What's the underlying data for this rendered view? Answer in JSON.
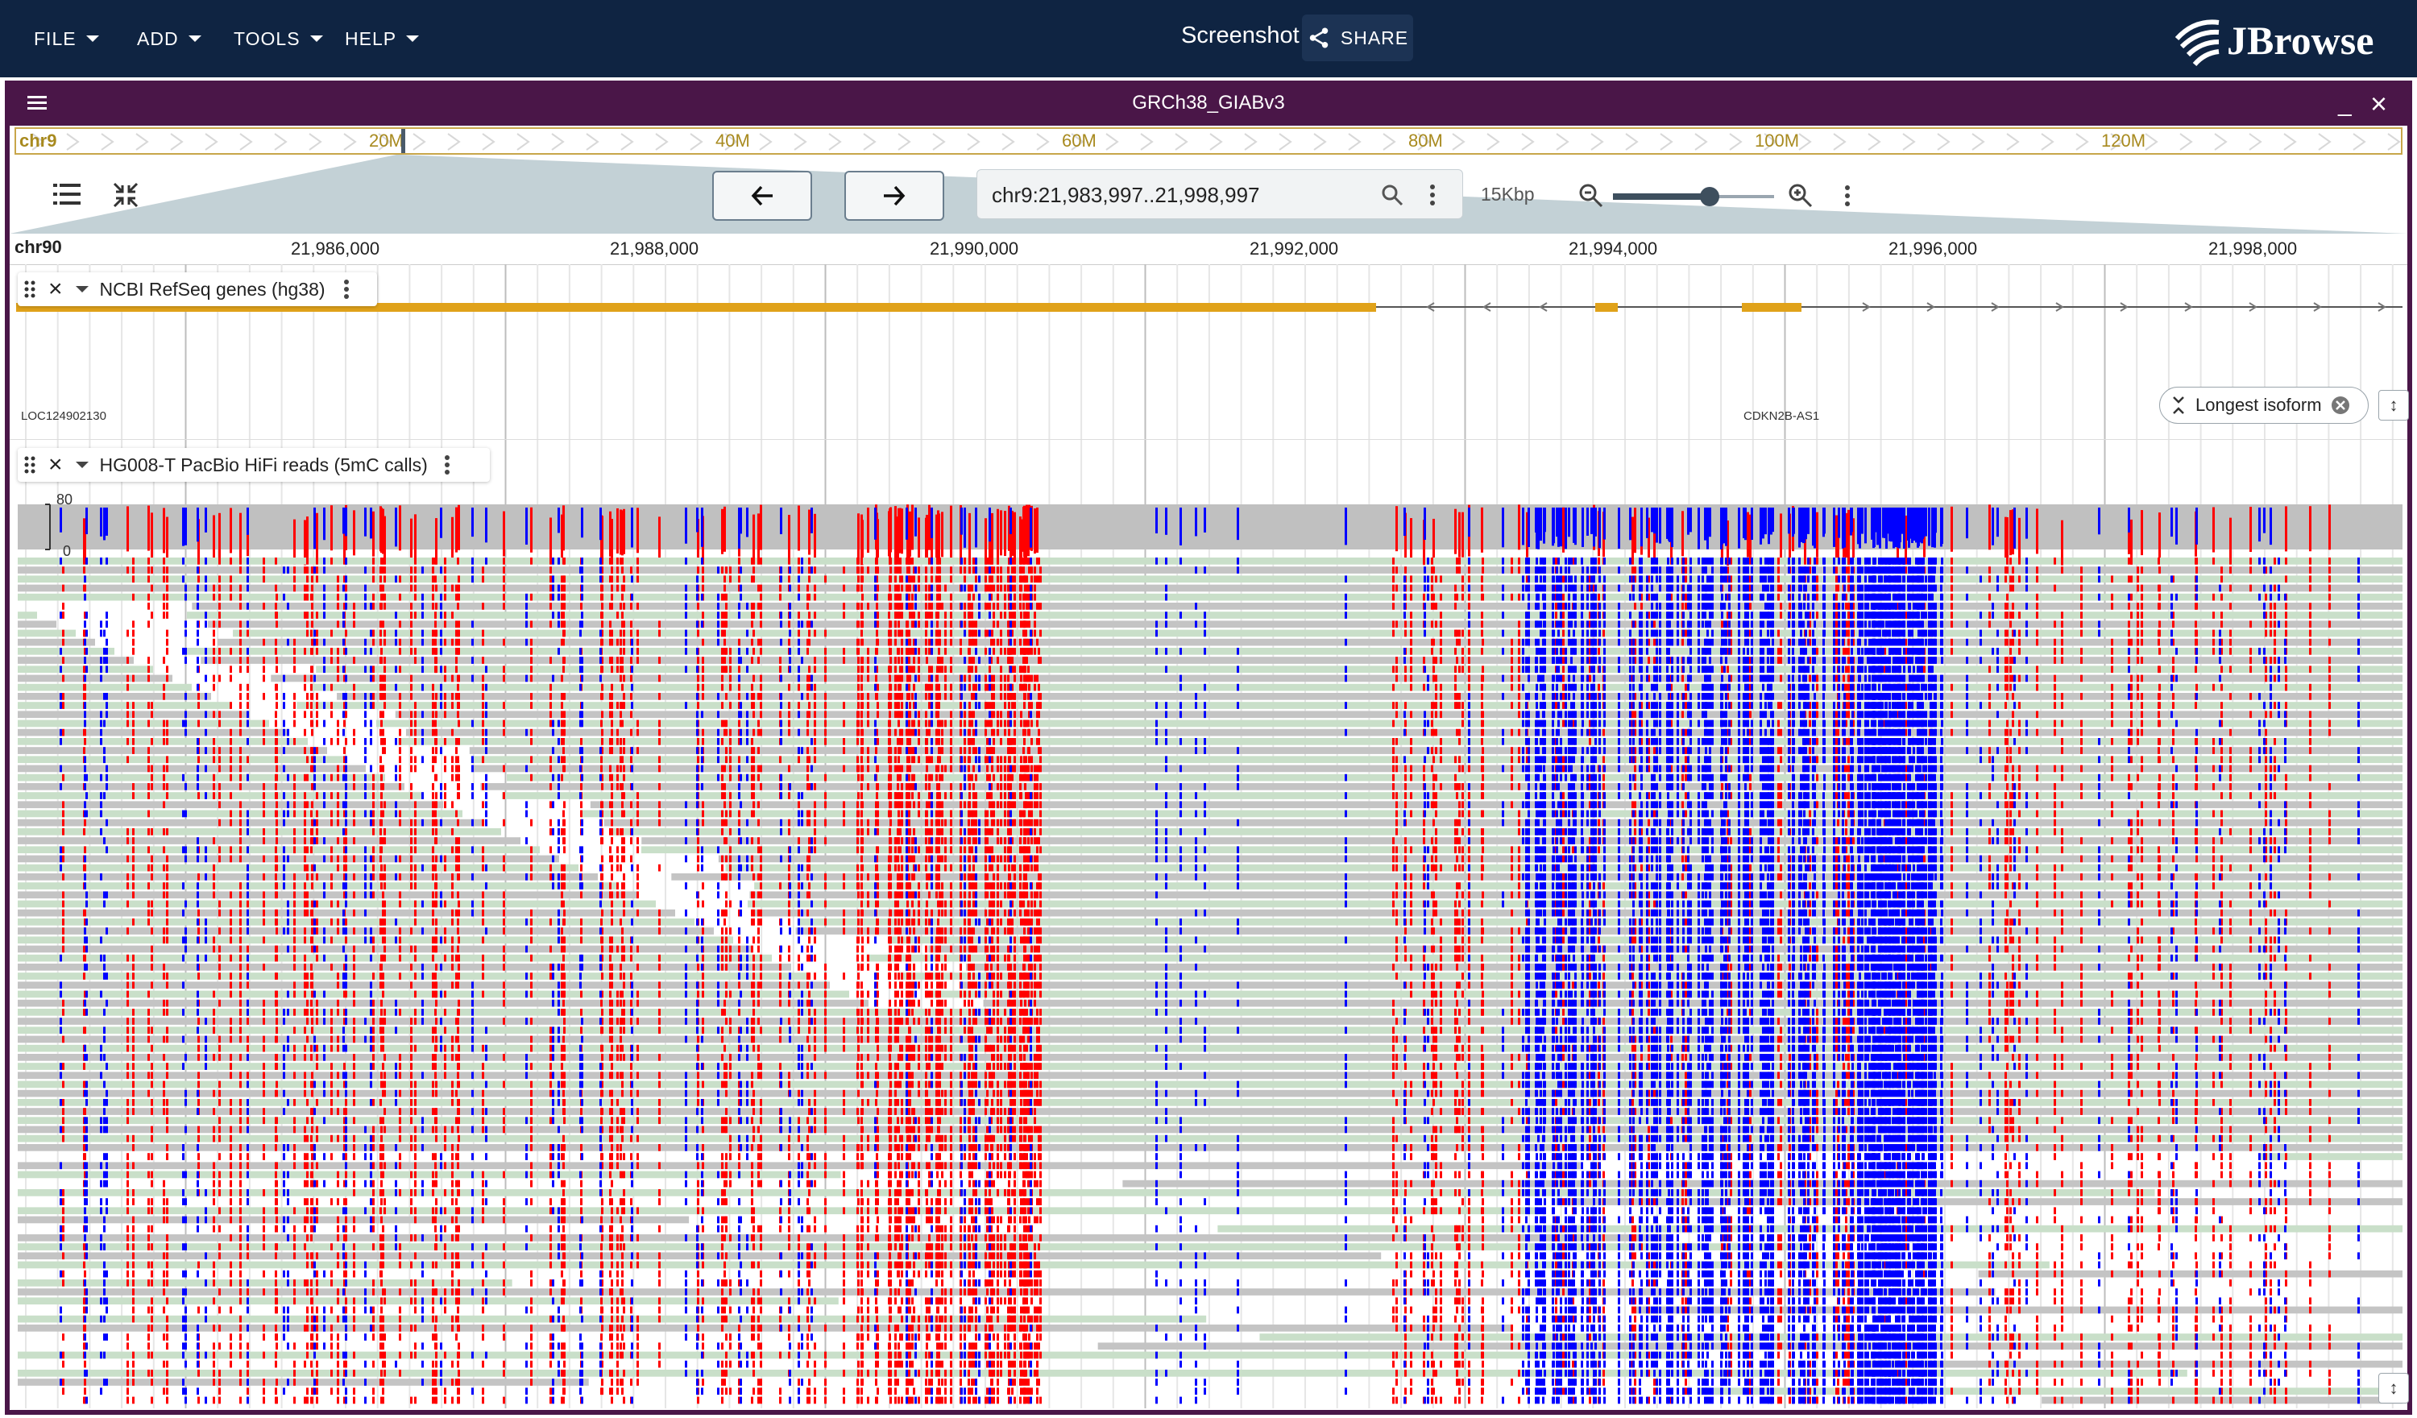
{
  "menus": [
    "FILE",
    "ADD",
    "TOOLS",
    "HELP"
  ],
  "session_title": "Screenshot",
  "share_label": "SHARE",
  "brand": "JBrowse",
  "view": {
    "assembly": "GRCh38_GIABv3",
    "location": "chr9:21,983,997..21,998,997",
    "bp_width": "15Kbp",
    "zoom_fraction": 0.6
  },
  "overview": {
    "chromosome": "chr9",
    "labels": [
      "20M",
      "40M",
      "60M",
      "80M",
      "100M",
      "120M"
    ]
  },
  "ruler": {
    "chromosome": "chr9",
    "first_tick_fragment": "0",
    "ticks": [
      "21,986,000",
      "21,988,000",
      "21,990,000",
      "21,992,000",
      "21,994,000",
      "21,996,000",
      "21,998,000"
    ]
  },
  "tracks": {
    "genes": {
      "name": "NCBI RefSeq genes (hg38)",
      "features": [
        {
          "label": "LOC124902130"
        },
        {
          "label": "CDKN2B-AS1"
        }
      ],
      "chip_label": "Longest isoform"
    },
    "reads": {
      "name": "HG008-T PacBio HiFi reads (5mC calls)",
      "coverage_max": "80",
      "coverage_min": "0"
    }
  },
  "colors": {
    "topbar": "#0f2442",
    "view_header": "#4a1648",
    "gene": "#e0a21a",
    "methylated": "#ff0000",
    "unmethylated": "#0000ff",
    "read_forward": "#c9dfc9",
    "read_reverse": "#c4c4c4",
    "coverage": "#c0c0c0"
  }
}
